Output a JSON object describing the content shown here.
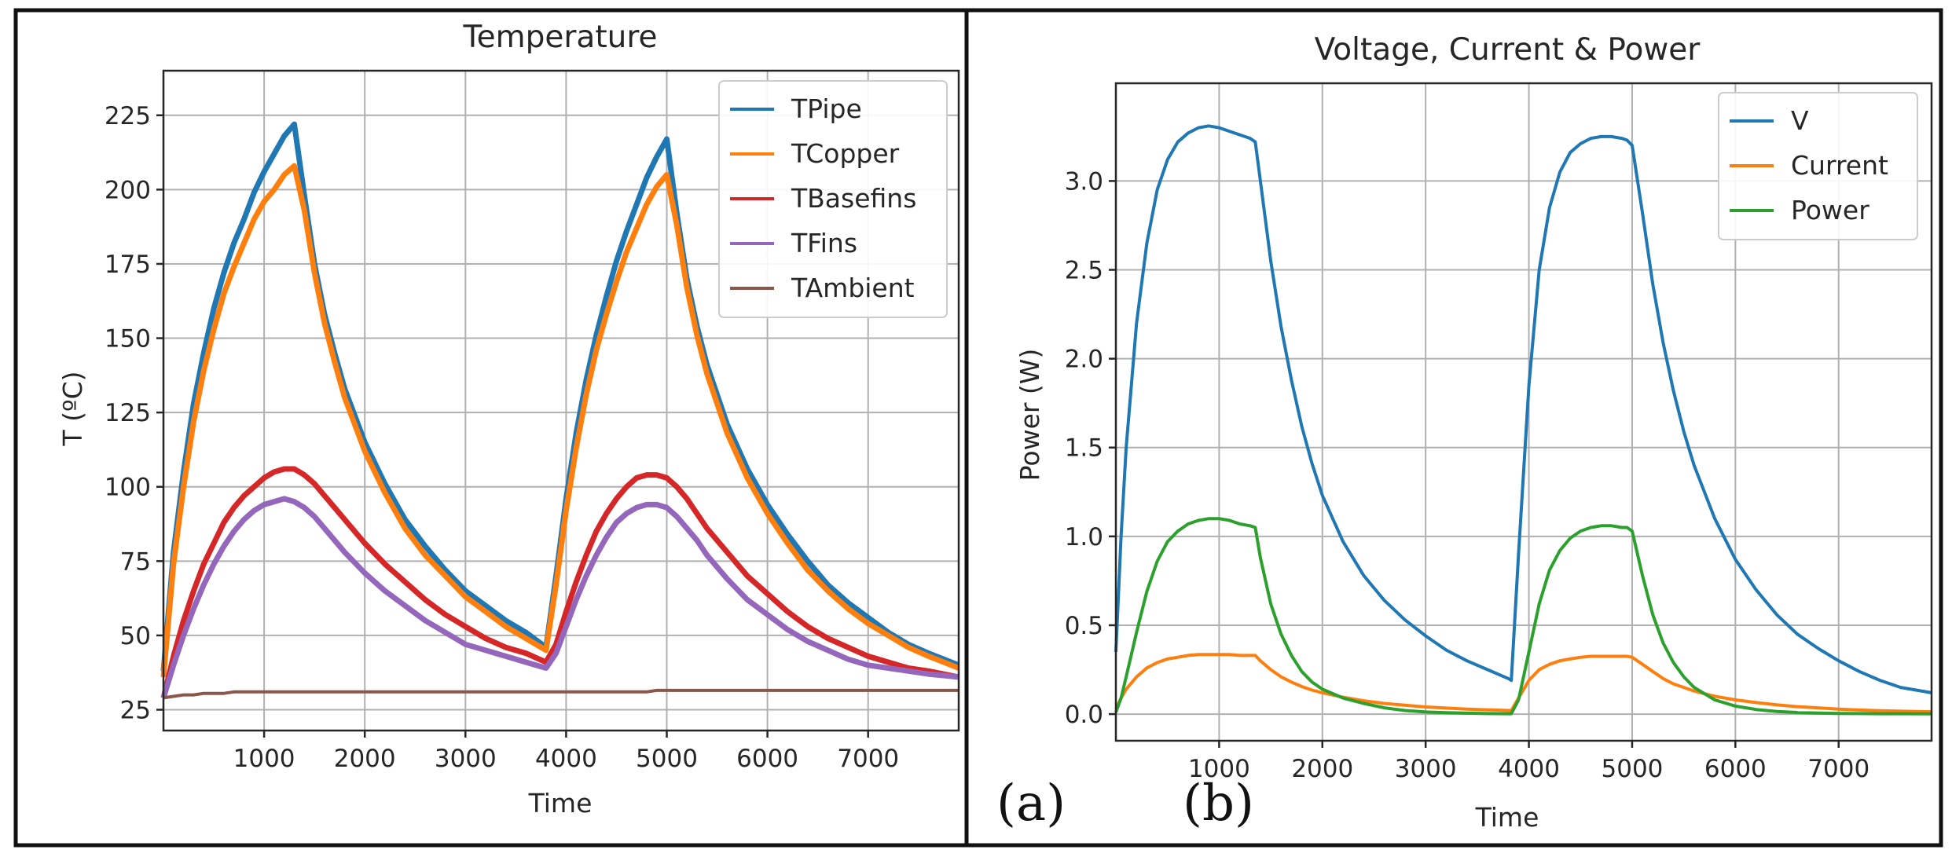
{
  "chart_data": [
    {
      "type": "line",
      "title": "Temperature",
      "xlabel": "Time",
      "ylabel": "T (ºC)",
      "xlim": [
        0,
        7900
      ],
      "ylim": [
        18,
        240
      ],
      "xticks": [
        1000,
        2000,
        3000,
        4000,
        5000,
        6000,
        7000
      ],
      "yticks": [
        25,
        50,
        75,
        100,
        125,
        150,
        175,
        200,
        225
      ],
      "grid": true,
      "legend_position": "top-right",
      "x": [
        0,
        100,
        200,
        300,
        400,
        500,
        600,
        700,
        800,
        900,
        1000,
        1100,
        1200,
        1300,
        1400,
        1500,
        1600,
        1700,
        1800,
        2000,
        2200,
        2400,
        2600,
        2800,
        3000,
        3200,
        3400,
        3600,
        3800,
        3900,
        4000,
        4100,
        4200,
        4300,
        4400,
        4500,
        4600,
        4700,
        4800,
        4900,
        5000,
        5100,
        5200,
        5300,
        5400,
        5600,
        5800,
        6000,
        6200,
        6400,
        6600,
        6800,
        7000,
        7200,
        7400,
        7600,
        7900
      ],
      "series": [
        {
          "name": "TPipe",
          "color": "#1f77b4",
          "values": [
            38,
            78,
            105,
            128,
            145,
            160,
            172,
            182,
            190,
            199,
            206,
            212,
            218,
            222,
            198,
            175,
            158,
            145,
            133,
            115,
            101,
            89,
            80,
            72,
            65,
            60,
            55,
            51,
            46,
            70,
            96,
            118,
            136,
            151,
            164,
            176,
            186,
            195,
            204,
            211,
            217,
            192,
            170,
            154,
            141,
            121,
            106,
            94,
            84,
            75,
            67,
            61,
            56,
            51,
            47,
            44,
            40
          ]
        },
        {
          "name": "TCopper",
          "color": "#ff7f0e",
          "values": [
            36,
            74,
            100,
            122,
            139,
            153,
            165,
            174,
            182,
            190,
            196,
            200,
            205,
            208,
            193,
            172,
            155,
            142,
            130,
            112,
            98,
            86,
            77,
            70,
            63,
            58,
            53,
            49,
            45,
            67,
            92,
            113,
            131,
            146,
            158,
            169,
            179,
            187,
            195,
            201,
            205,
            188,
            167,
            151,
            138,
            118,
            103,
            91,
            81,
            72,
            65,
            59,
            54,
            50,
            46,
            43,
            39
          ]
        },
        {
          "name": "TBasefins",
          "color": "#d62728",
          "values": [
            29,
            43,
            55,
            65,
            74,
            81,
            88,
            93,
            97,
            100,
            103,
            105,
            106,
            106,
            104,
            101,
            97,
            93,
            89,
            81,
            74,
            68,
            62,
            57,
            53,
            49,
            46,
            44,
            41,
            47,
            58,
            68,
            77,
            85,
            91,
            96,
            100,
            103,
            104,
            104,
            103,
            100,
            96,
            91,
            86,
            78,
            70,
            64,
            58,
            53,
            49,
            46,
            43,
            41,
            39,
            38,
            36
          ]
        },
        {
          "name": "TFins",
          "color": "#9467bd",
          "values": [
            29,
            40,
            50,
            59,
            67,
            74,
            80,
            85,
            89,
            92,
            94,
            95,
            96,
            95,
            93,
            90,
            86,
            82,
            78,
            71,
            65,
            60,
            55,
            51,
            47,
            45,
            43,
            41,
            39,
            44,
            53,
            62,
            70,
            77,
            83,
            88,
            91,
            93,
            94,
            94,
            93,
            90,
            86,
            82,
            77,
            69,
            62,
            57,
            52,
            48,
            45,
            42,
            40,
            39,
            38,
            37,
            36
          ]
        },
        {
          "name": "TAmbient",
          "color": "#8c564b",
          "values": [
            29,
            29.5,
            30,
            30,
            30.5,
            30.5,
            30.5,
            31,
            31,
            31,
            31,
            31,
            31,
            31,
            31,
            31,
            31,
            31,
            31,
            31,
            31,
            31,
            31,
            31,
            31,
            31,
            31,
            31,
            31,
            31,
            31,
            31,
            31,
            31,
            31,
            31,
            31,
            31,
            31,
            31.5,
            31.5,
            31.5,
            31.5,
            31.5,
            31.5,
            31.5,
            31.5,
            31.5,
            31.5,
            31.5,
            31.5,
            31.5,
            31.5,
            31.5,
            31.5,
            31.5,
            31.5
          ]
        }
      ],
      "legend": [
        "TPipe",
        "TCopper",
        "TBasefins",
        "TFins",
        "TAmbient"
      ],
      "caption": "(a)"
    },
    {
      "type": "line",
      "title": "Voltage, Current & Power",
      "xlabel": "Time",
      "ylabel": "Power (W)",
      "xlim": [
        0,
        7900
      ],
      "ylim": [
        -0.15,
        3.55
      ],
      "xticks": [
        1000,
        2000,
        3000,
        4000,
        5000,
        6000,
        7000
      ],
      "yticks": [
        0.0,
        0.5,
        1.0,
        1.5,
        2.0,
        2.5,
        3.0
      ],
      "ytick_labels": [
        "0.0",
        "0.5",
        "1.0",
        "1.5",
        "2.0",
        "2.5",
        "3.0"
      ],
      "grid": true,
      "legend_position": "top-right",
      "x": [
        0,
        50,
        100,
        200,
        300,
        400,
        500,
        600,
        700,
        800,
        900,
        1000,
        1100,
        1200,
        1300,
        1350,
        1400,
        1500,
        1600,
        1700,
        1800,
        1900,
        2000,
        2200,
        2400,
        2600,
        2800,
        3000,
        3200,
        3400,
        3600,
        3800,
        3830,
        3900,
        4000,
        4100,
        4200,
        4300,
        4400,
        4500,
        4600,
        4700,
        4800,
        4900,
        4950,
        5000,
        5100,
        5200,
        5300,
        5400,
        5500,
        5600,
        5800,
        6000,
        6200,
        6400,
        6600,
        6800,
        7000,
        7200,
        7400,
        7600,
        7900
      ],
      "series": [
        {
          "name": "V",
          "color": "#1f77b4",
          "values": [
            0.35,
            1.0,
            1.5,
            2.2,
            2.65,
            2.95,
            3.12,
            3.22,
            3.27,
            3.3,
            3.31,
            3.3,
            3.28,
            3.26,
            3.24,
            3.22,
            3.0,
            2.55,
            2.18,
            1.88,
            1.62,
            1.41,
            1.23,
            0.97,
            0.78,
            0.64,
            0.53,
            0.44,
            0.36,
            0.3,
            0.25,
            0.2,
            0.19,
            0.9,
            1.85,
            2.5,
            2.85,
            3.05,
            3.16,
            3.21,
            3.24,
            3.25,
            3.25,
            3.24,
            3.23,
            3.2,
            2.82,
            2.42,
            2.09,
            1.82,
            1.59,
            1.4,
            1.1,
            0.87,
            0.7,
            0.56,
            0.45,
            0.37,
            0.3,
            0.24,
            0.19,
            0.15,
            0.12
          ]
        },
        {
          "name": "Current",
          "color": "#ff7f0e",
          "values": [
            0.03,
            0.09,
            0.14,
            0.21,
            0.26,
            0.29,
            0.31,
            0.32,
            0.33,
            0.335,
            0.335,
            0.335,
            0.335,
            0.33,
            0.33,
            0.33,
            0.3,
            0.25,
            0.21,
            0.18,
            0.155,
            0.135,
            0.12,
            0.095,
            0.075,
            0.06,
            0.05,
            0.04,
            0.034,
            0.028,
            0.024,
            0.02,
            0.02,
            0.09,
            0.19,
            0.25,
            0.28,
            0.3,
            0.31,
            0.32,
            0.325,
            0.325,
            0.325,
            0.325,
            0.325,
            0.32,
            0.28,
            0.24,
            0.2,
            0.17,
            0.15,
            0.13,
            0.1,
            0.08,
            0.065,
            0.052,
            0.042,
            0.035,
            0.028,
            0.023,
            0.019,
            0.016,
            0.013
          ]
        },
        {
          "name": "Power",
          "color": "#2ca02c",
          "values": [
            0.01,
            0.09,
            0.21,
            0.46,
            0.69,
            0.86,
            0.97,
            1.03,
            1.07,
            1.09,
            1.1,
            1.1,
            1.09,
            1.07,
            1.06,
            1.05,
            0.88,
            0.62,
            0.45,
            0.33,
            0.24,
            0.18,
            0.14,
            0.09,
            0.06,
            0.035,
            0.02,
            0.012,
            0.008,
            0.005,
            0.003,
            0.002,
            0.002,
            0.08,
            0.35,
            0.62,
            0.81,
            0.92,
            0.99,
            1.03,
            1.05,
            1.06,
            1.06,
            1.05,
            1.05,
            1.03,
            0.78,
            0.56,
            0.4,
            0.29,
            0.21,
            0.15,
            0.08,
            0.045,
            0.026,
            0.015,
            0.009,
            0.006,
            0.004,
            0.003,
            0.002,
            0.002,
            0.001
          ]
        }
      ],
      "legend": [
        "V",
        "Current",
        "Power"
      ],
      "caption": "(b)"
    }
  ]
}
